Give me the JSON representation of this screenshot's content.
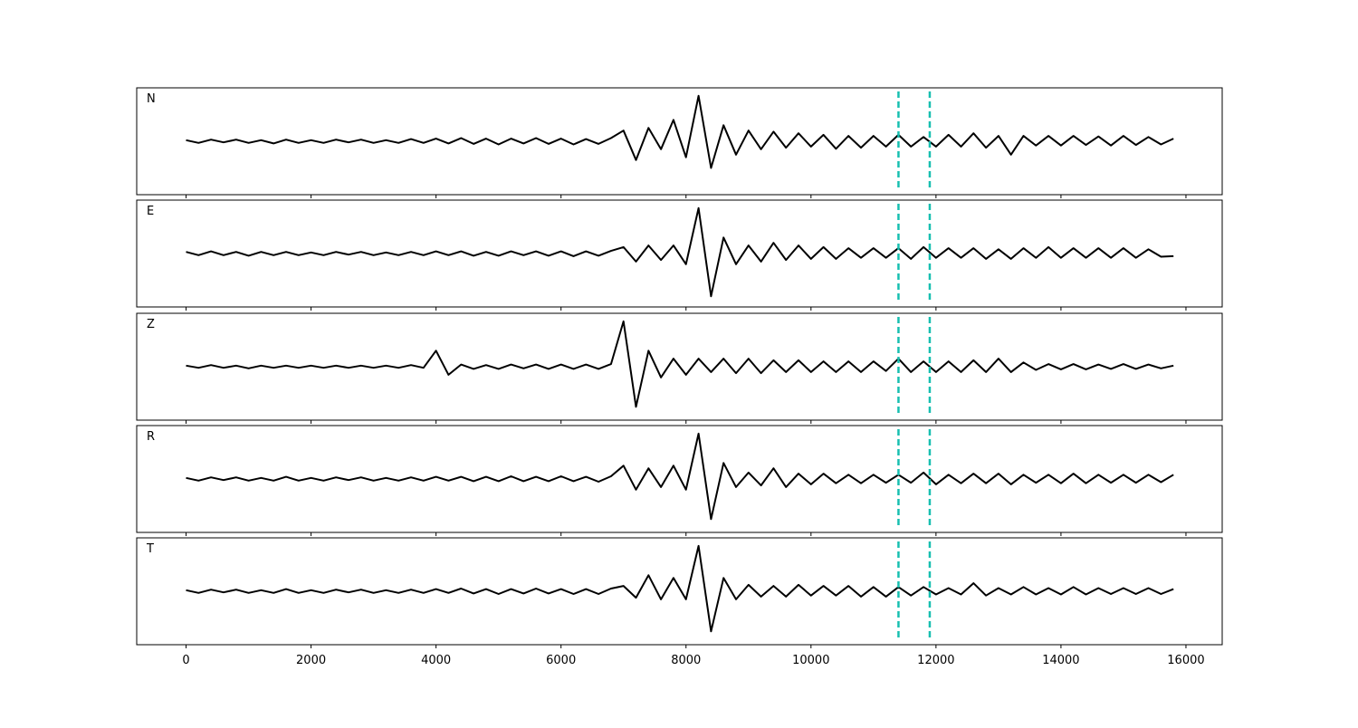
{
  "chart_data": {
    "type": "line",
    "x": [
      0,
      200,
      400,
      600,
      800,
      1000,
      1200,
      1400,
      1600,
      1800,
      2000,
      2200,
      2400,
      2600,
      2800,
      3000,
      3200,
      3400,
      3600,
      3800,
      4000,
      4200,
      4400,
      4600,
      4800,
      5000,
      5200,
      5400,
      5600,
      5800,
      6000,
      6200,
      6400,
      6600,
      6800,
      7000,
      7200,
      7400,
      7600,
      7800,
      8000,
      8200,
      8400,
      8600,
      8800,
      9000,
      9200,
      9400,
      9600,
      9800,
      10000,
      10200,
      10400,
      10600,
      10800,
      11000,
      11200,
      11400,
      11600,
      11800,
      12000,
      12200,
      12400,
      12600,
      12800,
      13000,
      13200,
      13400,
      13600,
      13800,
      14000,
      14200,
      14400,
      14600,
      14800,
      15000,
      15200,
      15400,
      15600,
      15800
    ],
    "xlim": [
      -790,
      16580
    ],
    "xticks": [
      0,
      2000,
      4000,
      6000,
      8000,
      10000,
      12000,
      14000,
      16000
    ],
    "ylim": [
      -1,
      1
    ],
    "color": "#000000",
    "vlines": [
      11400,
      11900
    ],
    "vline_color": "#17bfb0",
    "series": [
      {
        "name": "N",
        "values": [
          0.02,
          -0.03,
          0.03,
          -0.02,
          0.03,
          -0.03,
          0.02,
          -0.04,
          0.03,
          -0.03,
          0.02,
          -0.03,
          0.03,
          -0.02,
          0.03,
          -0.03,
          0.02,
          -0.03,
          0.04,
          -0.03,
          0.05,
          -0.04,
          0.06,
          -0.05,
          0.05,
          -0.06,
          0.05,
          -0.04,
          0.06,
          -0.05,
          0.05,
          -0.06,
          0.04,
          -0.05,
          0.06,
          0.2,
          -0.35,
          0.25,
          -0.15,
          0.4,
          -0.3,
          0.85,
          -0.5,
          0.3,
          -0.25,
          0.2,
          -0.15,
          0.18,
          -0.12,
          0.15,
          -0.1,
          0.12,
          -0.14,
          0.1,
          -0.12,
          0.1,
          -0.1,
          0.12,
          -0.1,
          0.08,
          -0.1,
          0.12,
          -0.1,
          0.15,
          -0.12,
          0.1,
          -0.25,
          0.1,
          -0.08,
          0.1,
          -0.08,
          0.1,
          -0.07,
          0.09,
          -0.08,
          0.1,
          -0.07,
          0.08,
          -0.06,
          0.05
        ]
      },
      {
        "name": "E",
        "values": [
          0.03,
          -0.03,
          0.04,
          -0.03,
          0.03,
          -0.04,
          0.03,
          -0.03,
          0.03,
          -0.03,
          0.02,
          -0.03,
          0.03,
          -0.02,
          0.03,
          -0.03,
          0.02,
          -0.03,
          0.03,
          -0.03,
          0.04,
          -0.03,
          0.04,
          -0.04,
          0.03,
          -0.04,
          0.04,
          -0.03,
          0.04,
          -0.04,
          0.04,
          -0.05,
          0.04,
          -0.04,
          0.05,
          0.12,
          -0.15,
          0.15,
          -0.12,
          0.15,
          -0.2,
          0.85,
          -0.8,
          0.3,
          -0.2,
          0.15,
          -0.15,
          0.2,
          -0.12,
          0.15,
          -0.1,
          0.12,
          -0.1,
          0.1,
          -0.08,
          0.1,
          -0.08,
          0.1,
          -0.1,
          0.12,
          -0.08,
          0.1,
          -0.08,
          0.1,
          -0.1,
          0.08,
          -0.1,
          0.1,
          -0.08,
          0.12,
          -0.08,
          0.1,
          -0.08,
          0.1,
          -0.08,
          0.1,
          -0.08,
          0.08,
          -0.06,
          -0.05
        ]
      },
      {
        "name": "Z",
        "values": [
          0.02,
          -0.02,
          0.03,
          -0.02,
          0.02,
          -0.03,
          0.02,
          -0.02,
          0.02,
          -0.02,
          0.02,
          -0.02,
          0.02,
          -0.02,
          0.02,
          -0.02,
          0.02,
          -0.02,
          0.03,
          -0.02,
          0.3,
          -0.15,
          0.04,
          -0.04,
          0.03,
          -0.04,
          0.04,
          -0.03,
          0.04,
          -0.04,
          0.04,
          -0.04,
          0.04,
          -0.04,
          0.05,
          0.85,
          -0.75,
          0.3,
          -0.2,
          0.15,
          -0.15,
          0.15,
          -0.1,
          0.15,
          -0.12,
          0.15,
          -0.12,
          0.12,
          -0.1,
          0.12,
          -0.1,
          0.1,
          -0.1,
          0.1,
          -0.1,
          0.1,
          -0.08,
          0.15,
          -0.1,
          0.1,
          -0.1,
          0.1,
          -0.1,
          0.12,
          -0.1,
          0.15,
          -0.1,
          0.08,
          -0.06,
          0.05,
          -0.05,
          0.05,
          -0.05,
          0.04,
          -0.04,
          0.05,
          -0.04,
          0.04,
          -0.03,
          0.02
        ]
      },
      {
        "name": "R",
        "values": [
          0.02,
          -0.03,
          0.03,
          -0.02,
          0.03,
          -0.03,
          0.02,
          -0.03,
          0.04,
          -0.03,
          0.02,
          -0.03,
          0.03,
          -0.02,
          0.03,
          -0.03,
          0.02,
          -0.03,
          0.03,
          -0.03,
          0.04,
          -0.03,
          0.04,
          -0.04,
          0.04,
          -0.04,
          0.05,
          -0.04,
          0.04,
          -0.04,
          0.05,
          -0.04,
          0.04,
          -0.05,
          0.05,
          0.25,
          -0.2,
          0.2,
          -0.15,
          0.25,
          -0.2,
          0.85,
          -0.75,
          0.3,
          -0.15,
          0.12,
          -0.12,
          0.2,
          -0.15,
          0.1,
          -0.1,
          0.1,
          -0.08,
          0.08,
          -0.08,
          0.08,
          -0.07,
          0.08,
          -0.07,
          0.12,
          -0.1,
          0.08,
          -0.08,
          0.1,
          -0.08,
          0.1,
          -0.1,
          0.08,
          -0.07,
          0.08,
          -0.08,
          0.1,
          -0.08,
          0.08,
          -0.07,
          0.08,
          -0.07,
          0.08,
          -0.06,
          0.08
        ]
      },
      {
        "name": "T",
        "values": [
          0.02,
          -0.03,
          0.03,
          -0.02,
          0.03,
          -0.03,
          0.02,
          -0.03,
          0.04,
          -0.03,
          0.02,
          -0.03,
          0.03,
          -0.02,
          0.03,
          -0.03,
          0.02,
          -0.03,
          0.03,
          -0.03,
          0.04,
          -0.03,
          0.05,
          -0.04,
          0.04,
          -0.05,
          0.04,
          -0.04,
          0.05,
          -0.04,
          0.04,
          -0.05,
          0.04,
          -0.05,
          0.05,
          0.1,
          -0.12,
          0.3,
          -0.15,
          0.25,
          -0.15,
          0.85,
          -0.75,
          0.25,
          -0.15,
          0.12,
          -0.1,
          0.1,
          -0.1,
          0.12,
          -0.08,
          0.1,
          -0.08,
          0.1,
          -0.1,
          0.08,
          -0.1,
          0.08,
          -0.08,
          0.08,
          -0.06,
          0.06,
          -0.06,
          0.15,
          -0.08,
          0.06,
          -0.06,
          0.08,
          -0.06,
          0.06,
          -0.06,
          0.08,
          -0.06,
          0.06,
          -0.05,
          0.06,
          -0.05,
          0.06,
          -0.05,
          0.04
        ]
      }
    ]
  }
}
